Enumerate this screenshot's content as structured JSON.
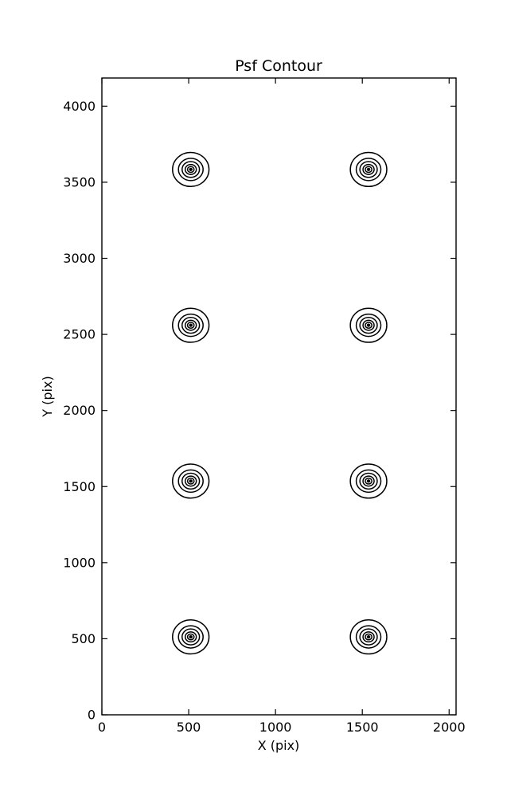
{
  "chart_data": {
    "type": "contour",
    "title": "Psf Contour",
    "xlabel": "X (pix)",
    "ylabel": "Y (pix)",
    "xlim": [
      0,
      2040
    ],
    "ylim": [
      0,
      4185
    ],
    "xticks": [
      0,
      500,
      1000,
      1500,
      2000
    ],
    "yticks": [
      0,
      500,
      1000,
      1500,
      2000,
      2500,
      3000,
      3500,
      4000
    ],
    "grid": false,
    "legend": "none",
    "line_color": "#000000",
    "background_color": "#ffffff",
    "psf_centers": [
      [
        512,
        512
      ],
      [
        1536,
        512
      ],
      [
        512,
        1536
      ],
      [
        1536,
        1536
      ],
      [
        512,
        2560
      ],
      [
        1536,
        2560
      ],
      [
        512,
        3584
      ],
      [
        1536,
        3584
      ]
    ],
    "contour_ring_radii_data_units": [
      [
        105,
        112
      ],
      [
        71,
        73
      ],
      [
        50,
        52
      ],
      [
        32,
        33
      ],
      [
        19,
        19
      ],
      [
        7,
        7
      ]
    ]
  }
}
